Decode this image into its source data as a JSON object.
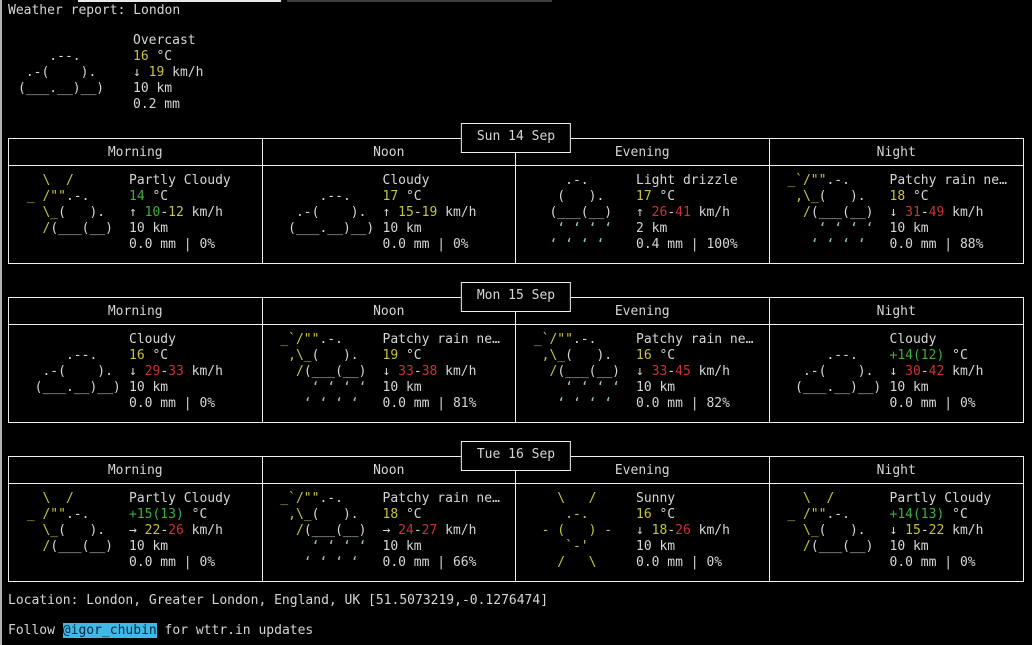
{
  "header": "Weather report: London",
  "colors": {
    "background": "#000000",
    "foreground": "#d6d6d6",
    "border": "#efefef",
    "temp_warm_yellow": "#c9c33f",
    "temp_mild_green": "#3fae41",
    "wind_strong_red": "#cb3232",
    "rain_drops_teal": "#8ed6b5",
    "link_highlight_bg": "#41b9e8",
    "link_highlight_fg": "#012b3a"
  },
  "period_headers": [
    "Morning",
    "Noon",
    "Evening",
    "Night"
  ],
  "current": {
    "icon": "overcast",
    "condition": "Overcast",
    "temp": [
      {
        "t": "16",
        "c": "yellow"
      },
      {
        "t": " °C",
        "c": "fg"
      }
    ],
    "wind": [
      {
        "t": "↓ ",
        "c": "fg"
      },
      {
        "t": "19",
        "c": "yellow"
      },
      {
        "t": " km/h",
        "c": "fg"
      }
    ],
    "visibility": "10 km",
    "precip": "0.2 mm"
  },
  "days": [
    {
      "date": "Sun 14 Sep",
      "cells": [
        {
          "icon": "partly_cloudy",
          "condition": "Partly Cloudy",
          "temp": [
            {
              "t": "14",
              "c": "green"
            },
            {
              "t": " °C",
              "c": "fg"
            }
          ],
          "wind": [
            {
              "t": "↑ ",
              "c": "fg"
            },
            {
              "t": "10",
              "c": "green"
            },
            {
              "t": "-",
              "c": "fg"
            },
            {
              "t": "12",
              "c": "yellow"
            },
            {
              "t": " km/h",
              "c": "fg"
            }
          ],
          "visibility": "10 km",
          "precip": "0.0 mm | 0%"
        },
        {
          "icon": "cloudy",
          "condition": "Cloudy",
          "temp": [
            {
              "t": "17",
              "c": "yellow"
            },
            {
              "t": " °C",
              "c": "fg"
            }
          ],
          "wind": [
            {
              "t": "↑ ",
              "c": "fg"
            },
            {
              "t": "15",
              "c": "yellow"
            },
            {
              "t": "-",
              "c": "fg"
            },
            {
              "t": "19",
              "c": "yellow"
            },
            {
              "t": " km/h",
              "c": "fg"
            }
          ],
          "visibility": "10 km",
          "precip": "0.0 mm | 0%"
        },
        {
          "icon": "light_drizzle",
          "condition": "Light drizzle",
          "temp": [
            {
              "t": "17",
              "c": "yellow"
            },
            {
              "t": " °C",
              "c": "fg"
            }
          ],
          "wind": [
            {
              "t": "↑ ",
              "c": "fg"
            },
            {
              "t": "26",
              "c": "red"
            },
            {
              "t": "-",
              "c": "fg"
            },
            {
              "t": "41",
              "c": "red"
            },
            {
              "t": " km/h",
              "c": "fg"
            }
          ],
          "visibility": "2 km",
          "precip": "0.4 mm | 100%"
        },
        {
          "icon": "patchy_rain",
          "condition": "Patchy rain ne…",
          "temp": [
            {
              "t": "18",
              "c": "yellow"
            },
            {
              "t": " °C",
              "c": "fg"
            }
          ],
          "wind": [
            {
              "t": "↓ ",
              "c": "fg"
            },
            {
              "t": "31",
              "c": "red"
            },
            {
              "t": "-",
              "c": "fg"
            },
            {
              "t": "49",
              "c": "red"
            },
            {
              "t": " km/h",
              "c": "fg"
            }
          ],
          "visibility": "10 km",
          "precip": "0.0 mm | 88%"
        }
      ]
    },
    {
      "date": "Mon 15 Sep",
      "cells": [
        {
          "icon": "cloudy",
          "condition": "Cloudy",
          "temp": [
            {
              "t": "16",
              "c": "yellow"
            },
            {
              "t": " °C",
              "c": "fg"
            }
          ],
          "wind": [
            {
              "t": "↓ ",
              "c": "fg"
            },
            {
              "t": "29",
              "c": "red"
            },
            {
              "t": "-",
              "c": "fg"
            },
            {
              "t": "33",
              "c": "red"
            },
            {
              "t": " km/h",
              "c": "fg"
            }
          ],
          "visibility": "10 km",
          "precip": "0.0 mm | 0%"
        },
        {
          "icon": "patchy_rain",
          "condition": "Patchy rain ne…",
          "temp": [
            {
              "t": "19",
              "c": "yellow"
            },
            {
              "t": " °C",
              "c": "fg"
            }
          ],
          "wind": [
            {
              "t": "↓ ",
              "c": "fg"
            },
            {
              "t": "33",
              "c": "red"
            },
            {
              "t": "-",
              "c": "fg"
            },
            {
              "t": "38",
              "c": "red"
            },
            {
              "t": " km/h",
              "c": "fg"
            }
          ],
          "visibility": "10 km",
          "precip": "0.0 mm | 81%"
        },
        {
          "icon": "patchy_rain",
          "condition": "Patchy rain ne…",
          "temp": [
            {
              "t": "16",
              "c": "yellow"
            },
            {
              "t": " °C",
              "c": "fg"
            }
          ],
          "wind": [
            {
              "t": "↓ ",
              "c": "fg"
            },
            {
              "t": "33",
              "c": "red"
            },
            {
              "t": "-",
              "c": "fg"
            },
            {
              "t": "45",
              "c": "red"
            },
            {
              "t": " km/h",
              "c": "fg"
            }
          ],
          "visibility": "10 km",
          "precip": "0.0 mm | 82%"
        },
        {
          "icon": "cloudy",
          "condition": "Cloudy",
          "temp": [
            {
              "t": "+14(12)",
              "c": "green"
            },
            {
              "t": " °C",
              "c": "fg"
            }
          ],
          "wind": [
            {
              "t": "↓ ",
              "c": "fg"
            },
            {
              "t": "30",
              "c": "red"
            },
            {
              "t": "-",
              "c": "fg"
            },
            {
              "t": "42",
              "c": "red"
            },
            {
              "t": " km/h",
              "c": "fg"
            }
          ],
          "visibility": "10 km",
          "precip": "0.0 mm | 0%"
        }
      ]
    },
    {
      "date": "Tue 16 Sep",
      "cells": [
        {
          "icon": "partly_cloudy",
          "condition": "Partly Cloudy",
          "temp": [
            {
              "t": "+15(13)",
              "c": "green"
            },
            {
              "t": " °C",
              "c": "fg"
            }
          ],
          "wind": [
            {
              "t": "→ ",
              "c": "fg"
            },
            {
              "t": "22",
              "c": "yellow"
            },
            {
              "t": "-",
              "c": "fg"
            },
            {
              "t": "26",
              "c": "red"
            },
            {
              "t": " km/h",
              "c": "fg"
            }
          ],
          "visibility": "10 km",
          "precip": "0.0 mm | 0%"
        },
        {
          "icon": "patchy_rain",
          "condition": "Patchy rain ne…",
          "temp": [
            {
              "t": "18",
              "c": "yellow"
            },
            {
              "t": " °C",
              "c": "fg"
            }
          ],
          "wind": [
            {
              "t": "→ ",
              "c": "fg"
            },
            {
              "t": "24",
              "c": "red"
            },
            {
              "t": "-",
              "c": "fg"
            },
            {
              "t": "27",
              "c": "red"
            },
            {
              "t": " km/h",
              "c": "fg"
            }
          ],
          "visibility": "10 km",
          "precip": "0.0 mm | 66%"
        },
        {
          "icon": "sunny",
          "condition": "Sunny",
          "temp": [
            {
              "t": "16",
              "c": "yellow"
            },
            {
              "t": " °C",
              "c": "fg"
            }
          ],
          "wind": [
            {
              "t": "↓ ",
              "c": "fg"
            },
            {
              "t": "18",
              "c": "yellow"
            },
            {
              "t": "-",
              "c": "fg"
            },
            {
              "t": "26",
              "c": "red"
            },
            {
              "t": " km/h",
              "c": "fg"
            }
          ],
          "visibility": "10 km",
          "precip": "0.0 mm | 0%"
        },
        {
          "icon": "partly_cloudy",
          "condition": "Partly Cloudy",
          "temp": [
            {
              "t": "+14(13)",
              "c": "green"
            },
            {
              "t": " °C",
              "c": "fg"
            }
          ],
          "wind": [
            {
              "t": "↓ ",
              "c": "fg"
            },
            {
              "t": "15",
              "c": "yellow"
            },
            {
              "t": "-",
              "c": "fg"
            },
            {
              "t": "22",
              "c": "yellow"
            },
            {
              "t": " km/h",
              "c": "fg"
            }
          ],
          "visibility": "10 km",
          "precip": "0.0 mm | 0%"
        }
      ]
    }
  ],
  "icons": {
    "overcast": [
      [
        {
          "t": "",
          "c": "fg"
        }
      ],
      [
        {
          "t": "    .--.",
          "c": "fg"
        }
      ],
      [
        {
          "t": " .-(    ).",
          "c": "fg"
        }
      ],
      [
        {
          "t": "(___.__)__)",
          "c": "fg"
        }
      ],
      [
        {
          "t": "",
          "c": "fg"
        }
      ]
    ],
    "cloudy": [
      [
        {
          "t": "",
          "c": "fg"
        }
      ],
      [
        {
          "t": "      .--.",
          "c": "fg"
        }
      ],
      [
        {
          "t": "   .-(    ).",
          "c": "fg"
        }
      ],
      [
        {
          "t": "  (___.__)__)",
          "c": "fg"
        }
      ],
      [
        {
          "t": "",
          "c": "fg"
        }
      ]
    ],
    "partly_cloudy": [
      [
        {
          "t": "   \\  /",
          "c": "yellow"
        }
      ],
      [
        {
          "t": " _ /\"\"",
          "c": "yellow"
        },
        {
          "t": ".-.",
          "c": "fg"
        }
      ],
      [
        {
          "t": "   \\_",
          "c": "yellow"
        },
        {
          "t": "(   ).",
          "c": "fg"
        }
      ],
      [
        {
          "t": "   /",
          "c": "yellow"
        },
        {
          "t": "(___(__)",
          "c": "fg"
        }
      ],
      [
        {
          "t": "",
          "c": "fg"
        }
      ]
    ],
    "light_drizzle": [
      [
        {
          "t": "     .-.",
          "c": "fg"
        }
      ],
      [
        {
          "t": "    (   ).",
          "c": "fg"
        }
      ],
      [
        {
          "t": "   (___(__)",
          "c": "fg"
        }
      ],
      [
        {
          "t": "    ‘ ‘ ‘ ‘",
          "c": "cyan"
        }
      ],
      [
        {
          "t": "   ‘ ‘ ‘ ‘",
          "c": "cyan"
        }
      ]
    ],
    "patchy_rain": [
      [
        {
          "t": " _`/\"\"",
          "c": "yellow"
        },
        {
          "t": ".-.",
          "c": "fg"
        }
      ],
      [
        {
          "t": "  ,\\_",
          "c": "yellow"
        },
        {
          "t": "(   ).",
          "c": "fg"
        }
      ],
      [
        {
          "t": "   /",
          "c": "yellow"
        },
        {
          "t": "(___(__)",
          "c": "fg"
        }
      ],
      [
        {
          "t": "     ‘ ‘ ‘ ‘",
          "c": "cyan"
        }
      ],
      [
        {
          "t": "    ‘ ‘ ‘ ‘",
          "c": "cyan"
        }
      ]
    ],
    "sunny": [
      [
        {
          "t": "    \\   /",
          "c": "yellow"
        }
      ],
      [
        {
          "t": "     .-.",
          "c": "yellow"
        }
      ],
      [
        {
          "t": "  - (   ) -",
          "c": "yellow"
        }
      ],
      [
        {
          "t": "     `-'",
          "c": "yellow"
        }
      ],
      [
        {
          "t": "    /   \\",
          "c": "yellow"
        }
      ]
    ]
  },
  "footer": {
    "location": "Location: London, Greater London, England, UK [51.5073219,-0.1276474]",
    "follow_prefix": "Follow ",
    "follow_link": "@igor_chubin",
    "follow_suffix": " for wttr.in updates"
  }
}
